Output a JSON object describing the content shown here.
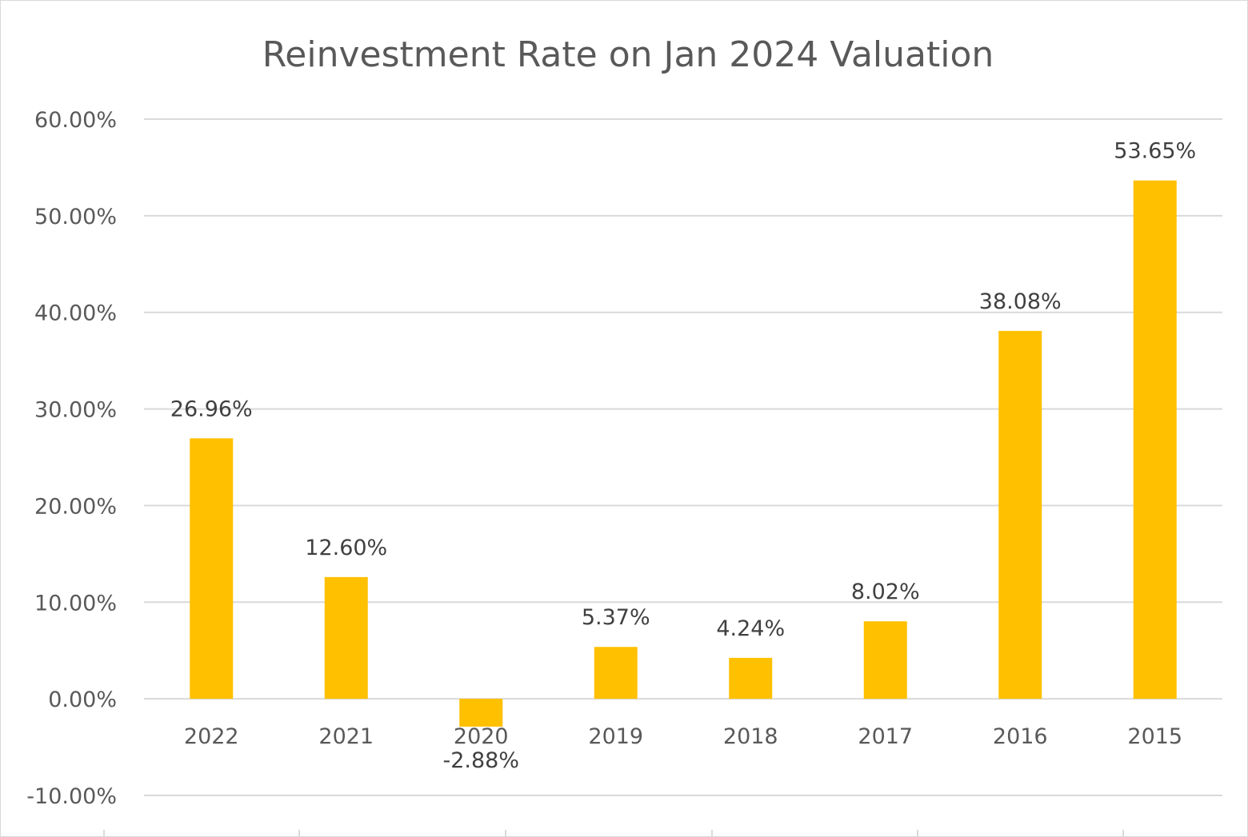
{
  "chart_data": {
    "type": "bar",
    "title": "Reinvestment Rate on Jan 2024 Valuation",
    "categories": [
      "2022",
      "2021",
      "2020",
      "2019",
      "2018",
      "2017",
      "2016",
      "2015"
    ],
    "values": [
      26.96,
      12.6,
      -2.88,
      5.37,
      4.24,
      8.02,
      38.08,
      53.65
    ],
    "data_labels": [
      "26.96%",
      "12.60%",
      "-2.88%",
      "5.37%",
      "4.24%",
      "8.02%",
      "38.08%",
      "53.65%"
    ],
    "ylim": [
      -10,
      60
    ],
    "yticks": [
      60,
      50,
      40,
      30,
      20,
      10,
      0,
      -10
    ],
    "ytick_labels": [
      "60.00%",
      "50.00%",
      "40.00%",
      "30.00%",
      "20.00%",
      "10.00%",
      "0.00%",
      "-10.00%"
    ],
    "bar_color": "#FFC000",
    "grid": true,
    "legend": "none"
  }
}
